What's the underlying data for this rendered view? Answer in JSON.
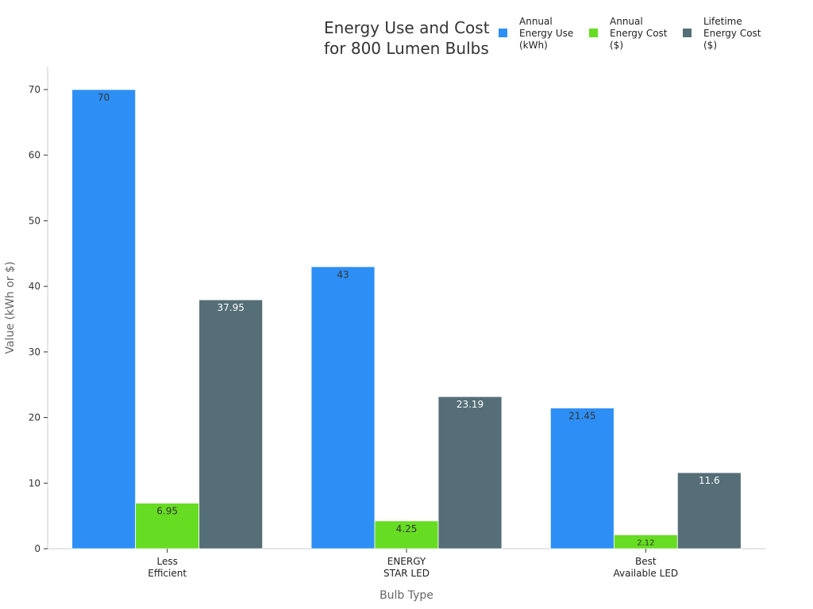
{
  "chart_data": {
    "type": "bar",
    "title_lines": [
      "Energy Use and Cost",
      "for 800 Lumen Bulbs"
    ],
    "xlabel": "Bulb Type",
    "ylabel": "Value (kWh or $)",
    "ylim": [
      0,
      73.5
    ],
    "yticks": [
      0,
      10,
      20,
      30,
      40,
      50,
      60,
      70
    ],
    "categories": [
      [
        "Less",
        "Efficient"
      ],
      [
        "ENERGY",
        "STAR LED"
      ],
      [
        "Best",
        "Available LED"
      ]
    ],
    "series": [
      {
        "name_lines": [
          "Annual",
          "Energy Use",
          "(kWh)"
        ],
        "color": "#2d8ff5",
        "label_color": "#333333",
        "values": [
          70,
          43,
          21.45
        ],
        "labels": [
          "70",
          "43",
          "21.45"
        ]
      },
      {
        "name_lines": [
          "Annual",
          "Energy Cost",
          "($)"
        ],
        "color": "#66dd22",
        "label_color": "#333333",
        "values": [
          6.95,
          4.25,
          2.12
        ],
        "labels": [
          "6.95",
          "4.25",
          "2.12"
        ]
      },
      {
        "name_lines": [
          "Lifetime",
          "Energy Cost",
          "($)"
        ],
        "color": "#556e77",
        "label_color": "#ffffff",
        "values": [
          37.95,
          23.19,
          11.6
        ],
        "labels": [
          "37.95",
          "23.19",
          "11.6"
        ]
      }
    ],
    "grid": false,
    "legend_position": "top-right"
  }
}
